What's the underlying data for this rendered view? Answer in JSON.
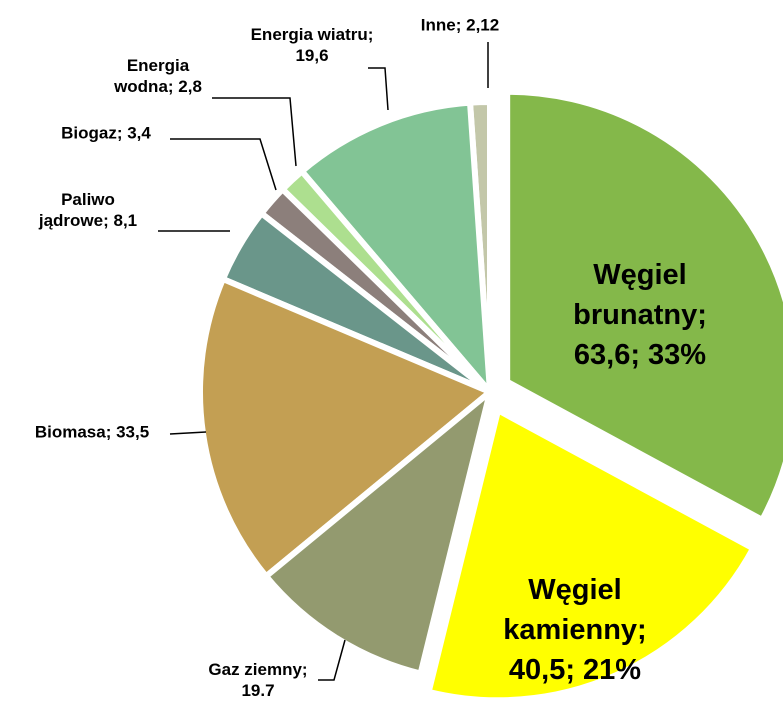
{
  "chart_data": {
    "type": "pie",
    "categories": [
      "Węgiel brunatny",
      "Węgiel kamienny",
      "Gaz ziemny",
      "Biomasa",
      "Paliwo jądrowe",
      "Biogaz",
      "Energia wodna",
      "Energia wiatru",
      "Inne"
    ],
    "values": [
      63.6,
      40.5,
      19.7,
      33.5,
      8.1,
      3.4,
      2.8,
      19.6,
      2.12
    ],
    "value_labels": [
      "Węgiel brunatny; 63,6; 33%",
      "Węgiel kamienny; 40,5; 21%",
      "Gaz ziemny; 19.7",
      "Biomasa; 33,5",
      "Paliwo jądrowe; 8,1",
      "Biogaz; 3,4",
      "Energia wodna; 2,8",
      "Energia wiatru; 19,6",
      "Inne; 2,12"
    ],
    "colors": [
      "#84b84a",
      "#ffff00",
      "#939a6f",
      "#c39f53",
      "#6a968a",
      "#8c7f7b",
      "#addf8f",
      "#82c495",
      "#c3c7a9"
    ]
  }
}
